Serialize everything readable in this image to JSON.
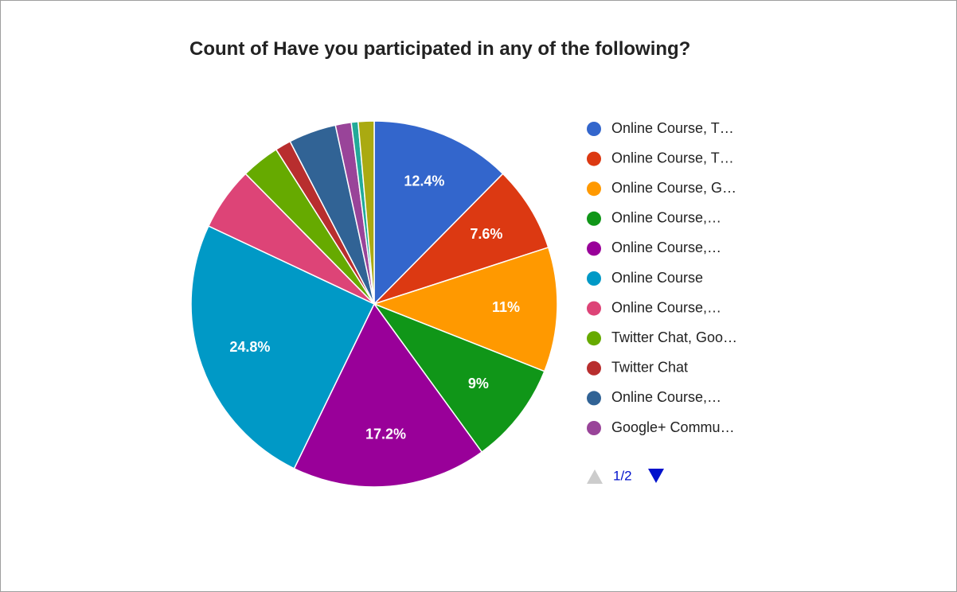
{
  "chart_data": {
    "type": "pie",
    "title": "Count of Have you participated in any of the following?",
    "categories": [
      "Online Course, T…",
      "Online Course, T…",
      "Online Course, G…",
      "Online Course,…",
      "Online Course,…",
      "Online Course",
      "Online Course,…",
      "Twitter Chat, Goo…",
      "Twitter Chat",
      "Online Course,…",
      "Google+ Commu…",
      null,
      null
    ],
    "values": [
      12.4,
      7.6,
      11,
      9,
      17.2,
      24.8,
      5.6,
      3.4,
      1.4,
      4.2,
      1.4,
      0.6,
      1.4
    ],
    "value_labels": [
      "12.4%",
      "7.6%",
      "11%",
      "9%",
      "17.2%",
      "24.8%",
      null,
      null,
      null,
      null,
      null,
      null,
      null
    ],
    "colors": [
      "#3366cc",
      "#dc3912",
      "#ff9900",
      "#109618",
      "#990099",
      "#0099c6",
      "#dd4477",
      "#66aa00",
      "#b82e2e",
      "#316395",
      "#994499",
      "#22aa99",
      "#aaaa11"
    ],
    "legend": "right",
    "legend_page": "1/2"
  }
}
